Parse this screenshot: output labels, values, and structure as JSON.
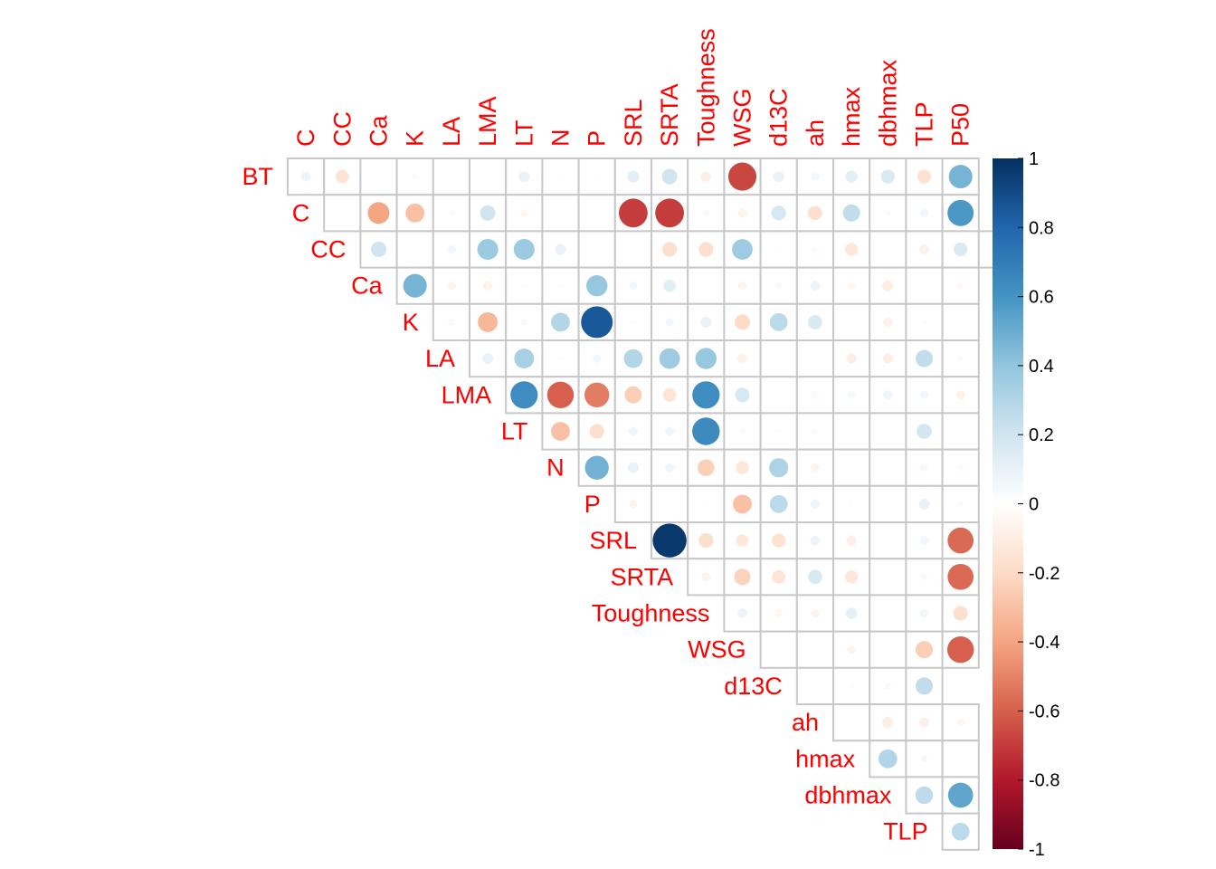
{
  "chart_data": {
    "type": "heatmap",
    "style": "upper-triangle correlation plot with circle glyphs",
    "row_labels": [
      "BT",
      "C",
      "CC",
      "Ca",
      "K",
      "LA",
      "LMA",
      "LT",
      "N",
      "P",
      "SRL",
      "SRTA",
      "Toughness",
      "WSG",
      "d13C",
      "ah",
      "hmax",
      "dbhmax",
      "TLP"
    ],
    "col_labels": [
      "C",
      "CC",
      "Ca",
      "K",
      "LA",
      "LMA",
      "LT",
      "N",
      "P",
      "SRL",
      "SRTA",
      "Toughness",
      "WSG",
      "d13C",
      "ah",
      "hmax",
      "dbhmax",
      "TLP",
      "P50"
    ],
    "values": [
      [
        0.08,
        -0.15,
        0.0,
        0.03,
        null,
        null,
        0.1,
        -0.01,
        -0.01,
        0.12,
        0.2,
        -0.09,
        -0.67,
        0.1,
        0.06,
        0.12,
        0.16,
        -0.16,
        0.47
      ],
      [
        null,
        -0.4,
        -0.3,
        -0.03,
        0.2,
        -0.05,
        0.01,
        null,
        -0.7,
        -0.7,
        0.04,
        -0.07,
        0.18,
        -0.17,
        0.25,
        0.03,
        0.06,
        0.58
      ],
      [
        0.2,
        0.01,
        0.06,
        0.37,
        0.37,
        0.1,
        null,
        null,
        -0.18,
        -0.18,
        0.36,
        -0.01,
        -0.04,
        -0.14,
        -0.01,
        -0.08,
        0.16,
        -0.06
      ],
      [
        0.47,
        -0.06,
        -0.07,
        -0.02,
        -0.02,
        0.38,
        0.06,
        0.13,
        null,
        -0.06,
        0.04,
        0.08,
        -0.05,
        -0.1,
        -0.01,
        -0.04
      ],
      [
        0.04,
        -0.33,
        0.04,
        0.3,
        0.85,
        0.02,
        0.06,
        0.1,
        -0.2,
        0.27,
        0.17,
        null,
        -0.08,
        0.02,
        0.01
      ],
      [
        0.1,
        0.33,
        0.02,
        0.06,
        0.3,
        0.36,
        0.38,
        -0.08,
        null,
        null,
        -0.09,
        -0.09,
        0.25,
        0.03
      ],
      [
        0.63,
        -0.6,
        -0.52,
        -0.25,
        -0.15,
        0.63,
        0.18,
        -0.01,
        -0.04,
        0.05,
        0.07,
        0.06,
        -0.07
      ],
      [
        -0.3,
        -0.18,
        0.07,
        0.07,
        0.64,
        -0.03,
        -0.02,
        -0.03,
        0.01,
        -0.01,
        0.19,
        0.0
      ],
      [
        0.48,
        0.1,
        0.07,
        -0.24,
        -0.14,
        0.31,
        -0.06,
        null,
        null,
        0.05,
        -0.04
      ],
      [
        -0.06,
        0.01,
        -0.01,
        -0.3,
        0.27,
        0.07,
        -0.02,
        -0.01,
        0.1,
        0.03
      ],
      [
        0.97,
        -0.18,
        -0.13,
        -0.16,
        0.08,
        -0.09,
        null,
        0.06,
        -0.57
      ],
      [
        -0.07,
        -0.23,
        -0.15,
        0.17,
        -0.14,
        0.01,
        0.04,
        -0.57
      ],
      [
        0.08,
        -0.05,
        -0.06,
        0.11,
        0.01,
        0.06,
        -0.18
      ],
      [
        0.01,
        0.01,
        -0.06,
        null,
        -0.25,
        -0.6
      ],
      [
        0.01,
        0.02,
        0.04,
        0.25
      ],
      [
        -0.01,
        -0.1,
        -0.08,
        -0.05
      ],
      [
        0.3,
        0.04,
        0.01
      ],
      [
        0.26,
        0.53
      ],
      [
        0.27
      ]
    ],
    "legend_ticks": [
      "1",
      "0.8",
      "0.6",
      "0.4",
      "0.2",
      "0",
      "-0.2",
      "-0.4",
      "-0.6",
      "-0.8",
      "-1"
    ],
    "legend_range": [
      -1,
      1
    ],
    "palette": [
      "#67001F",
      "#B2182B",
      "#D6604D",
      "#F4A582",
      "#FDDBC7",
      "#FFFFFF",
      "#D1E5F0",
      "#92C5DE",
      "#4393C3",
      "#2166AC",
      "#053061"
    ],
    "label_color": "#ff0000",
    "grid_color": "#c8c8c8"
  }
}
